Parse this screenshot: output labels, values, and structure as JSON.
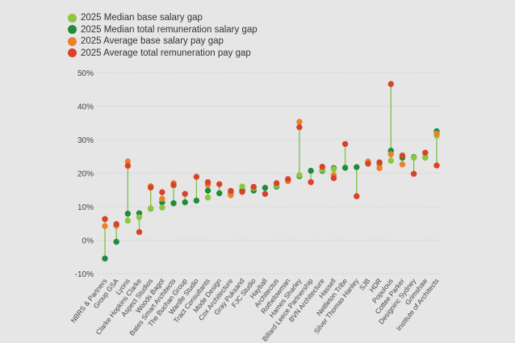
{
  "chart_data": {
    "type": "scatter",
    "ylim": [
      -10,
      50
    ],
    "yticks": [
      -10,
      0,
      10,
      20,
      30,
      40,
      50
    ],
    "ytick_labels": [
      "-10%",
      "0%",
      "10%",
      "20%",
      "30%",
      "40%",
      "50%"
    ],
    "grid": true,
    "legend_position": "top-left",
    "categories": [
      "NBRS & Partners",
      "Group GSA",
      "Lyons",
      "Clarke Hopkins Clarke",
      "Aspect Studios",
      "Woods Bagot",
      "Bates Smart Architects",
      "The Buchan Group",
      "Wardle Studio",
      "Tract Consultants",
      "Mode Design",
      "Cox Architecture",
      "Gray Puksand",
      "FJC Studio",
      "Hayball",
      "Architectus",
      "Rothelowman",
      "Hames Sharley",
      "Billard Leece Partnership",
      "BVN Architecture",
      "Hassell",
      "Nettleton Tribe",
      "Silver Thomas Hanley",
      "SJB",
      "HDR",
      "Populous",
      "Cottee Parker",
      "Designinc Sydney",
      "Grimshaw",
      "Institute of Architects"
    ],
    "series": [
      {
        "name": "2025 Median base salary gap",
        "color": "#8dc63f",
        "values": [
          null,
          null,
          5.8,
          6.8,
          9.5,
          9.7,
          16.3,
          null,
          null,
          12.7,
          null,
          13.5,
          16,
          15.5,
          null,
          16.3,
          17.8,
          19.4,
          null,
          21,
          21.2,
          null,
          null,
          23.5,
          22.5,
          23.7,
          25.3,
          24.6,
          24.8,
          31.2
        ]
      },
      {
        "name": "2025 Median total remuneration salary gap",
        "color": "#1e8c3a",
        "values": [
          -5.5,
          -0.5,
          7.9,
          8,
          9.4,
          11.3,
          11,
          11.3,
          11.8,
          14.8,
          14,
          14,
          14.9,
          14.8,
          15.6,
          16,
          18,
          19.1,
          20.7,
          20.7,
          21.5,
          21.6,
          21.8,
          23.2,
          23.2,
          26.7,
          24.6,
          24.8,
          24.7,
          32.5
        ]
      },
      {
        "name": "2025 Average base salary pay gap",
        "color": "#e8822a",
        "values": [
          4.2,
          4.3,
          23.5,
          null,
          16.1,
          12.3,
          17,
          null,
          null,
          16.5,
          null,
          13.4,
          null,
          null,
          null,
          null,
          17.6,
          35.3,
          null,
          null,
          19.4,
          null,
          null,
          23.3,
          21.5,
          25.6,
          22.6,
          null,
          null,
          31.8
        ]
      },
      {
        "name": "2025 Average total remuneration pay gap",
        "color": "#d9422a",
        "values": [
          6.3,
          4.8,
          22.2,
          2.4,
          15.7,
          14.3,
          16.5,
          13.8,
          18.9,
          17.3,
          16.7,
          14.7,
          14.4,
          15.9,
          13.8,
          17,
          18.2,
          33.7,
          17.3,
          21.9,
          18.5,
          28.7,
          13.1,
          22.8,
          23.1,
          46.6,
          25.2,
          19.8,
          26.1,
          22.3
        ]
      }
    ]
  }
}
